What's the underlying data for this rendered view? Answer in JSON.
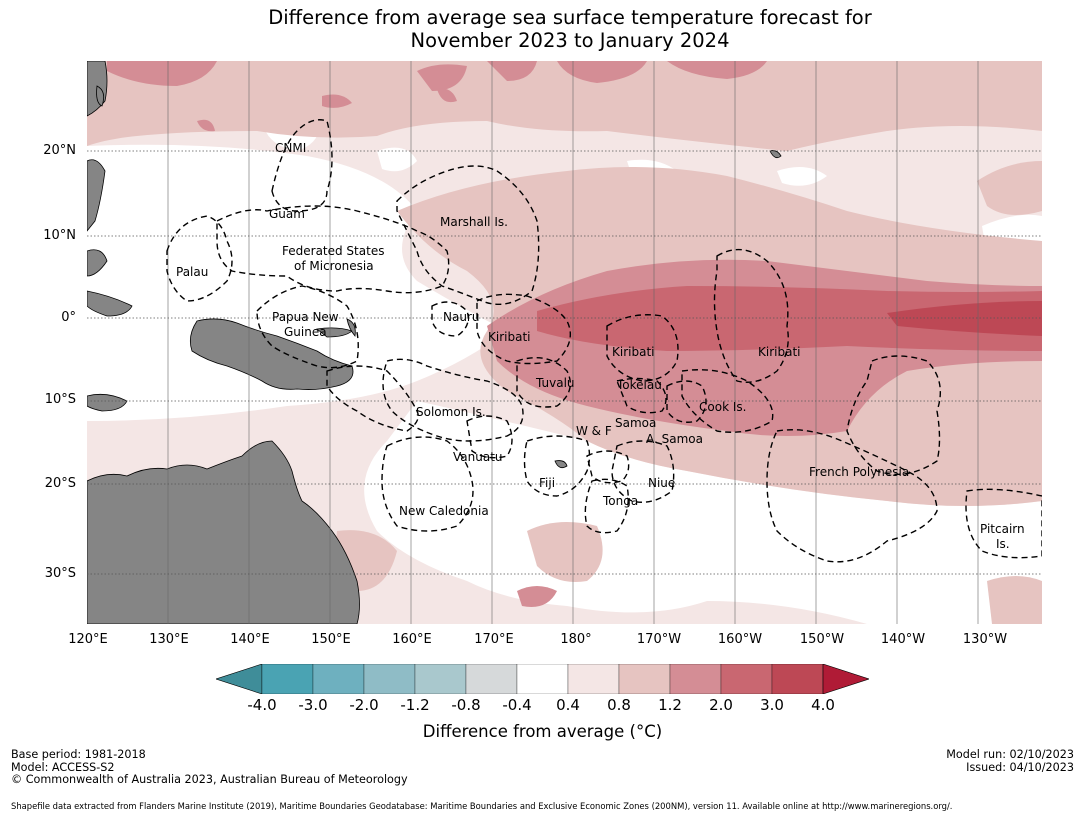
{
  "title": {
    "line1": "Difference from average sea surface temperature forecast for",
    "line2": "November 2023 to January 2024"
  },
  "map": {
    "lon_range": [
      120,
      238
    ],
    "lat_range": [
      -35,
      32
    ],
    "lon_ticks": [
      "120°E",
      "130°E",
      "140°E",
      "150°E",
      "160°E",
      "170°E",
      "180°",
      "170°W",
      "160°W",
      "150°W",
      "140°W",
      "130°W"
    ],
    "lat_ticks": [
      "20°N",
      "10°N",
      "0°",
      "10°S",
      "20°S",
      "30°S"
    ],
    "regions": [
      {
        "lines": [
          "CNMI"
        ]
      },
      {
        "lines": [
          "Guam"
        ]
      },
      {
        "lines": [
          "Marshall Is."
        ]
      },
      {
        "lines": [
          "Federated States",
          "of Micronesia"
        ]
      },
      {
        "lines": [
          "Palau"
        ]
      },
      {
        "lines": [
          "Papua New",
          "Guinea"
        ]
      },
      {
        "lines": [
          "Nauru"
        ]
      },
      {
        "lines": [
          "Kiribati"
        ]
      },
      {
        "lines": [
          "Kiribati"
        ]
      },
      {
        "lines": [
          "Kiribati"
        ]
      },
      {
        "lines": [
          "Tuvalu"
        ]
      },
      {
        "lines": [
          "Tokelau"
        ]
      },
      {
        "lines": [
          "Cook Is."
        ]
      },
      {
        "lines": [
          "Solomon Is."
        ]
      },
      {
        "lines": [
          "Samoa"
        ]
      },
      {
        "lines": [
          "W & F"
        ]
      },
      {
        "lines": [
          "A. Samoa"
        ]
      },
      {
        "lines": [
          "Vanuatu"
        ]
      },
      {
        "lines": [
          "Fiji"
        ]
      },
      {
        "lines": [
          "Niue"
        ]
      },
      {
        "lines": [
          "Tonga"
        ]
      },
      {
        "lines": [
          "French Polynesia"
        ]
      },
      {
        "lines": [
          "New Caledonia"
        ]
      },
      {
        "lines": [
          "Pitcairn",
          "Is."
        ]
      }
    ]
  },
  "colorbar": {
    "ticks": [
      "-4.0",
      "-3.0",
      "-2.0",
      "-1.2",
      "-0.8",
      "-0.4",
      "0.4",
      "0.8",
      "1.2",
      "2.0",
      "3.0",
      "4.0"
    ],
    "colors": [
      "#3f8d99",
      "#4aa3b3",
      "#6eb0bf",
      "#8fbcc6",
      "#a9c8cd",
      "#d6d9da",
      "#ffffff",
      "#f4e6e5",
      "#e6c4c1",
      "#d48d95",
      "#c96771",
      "#bd4855",
      "#b01b36"
    ],
    "label": "Difference from average (°C)"
  },
  "footer": {
    "left": [
      "Base period: 1981-2018",
      "Model: ACCESS-S2",
      "© Commonwealth of Australia 2023, Australian Bureau of Meteorology"
    ],
    "right": [
      "Model run: 02/10/2023",
      "Issued: 04/10/2023"
    ],
    "source": "Shapefile data extracted from Flanders Marine Institute (2019), Maritime Boundaries Geodatabase: Maritime Boundaries and Exclusive Economic Zones (200NM), version 11. Available online at http://www.marineregions.org/."
  }
}
